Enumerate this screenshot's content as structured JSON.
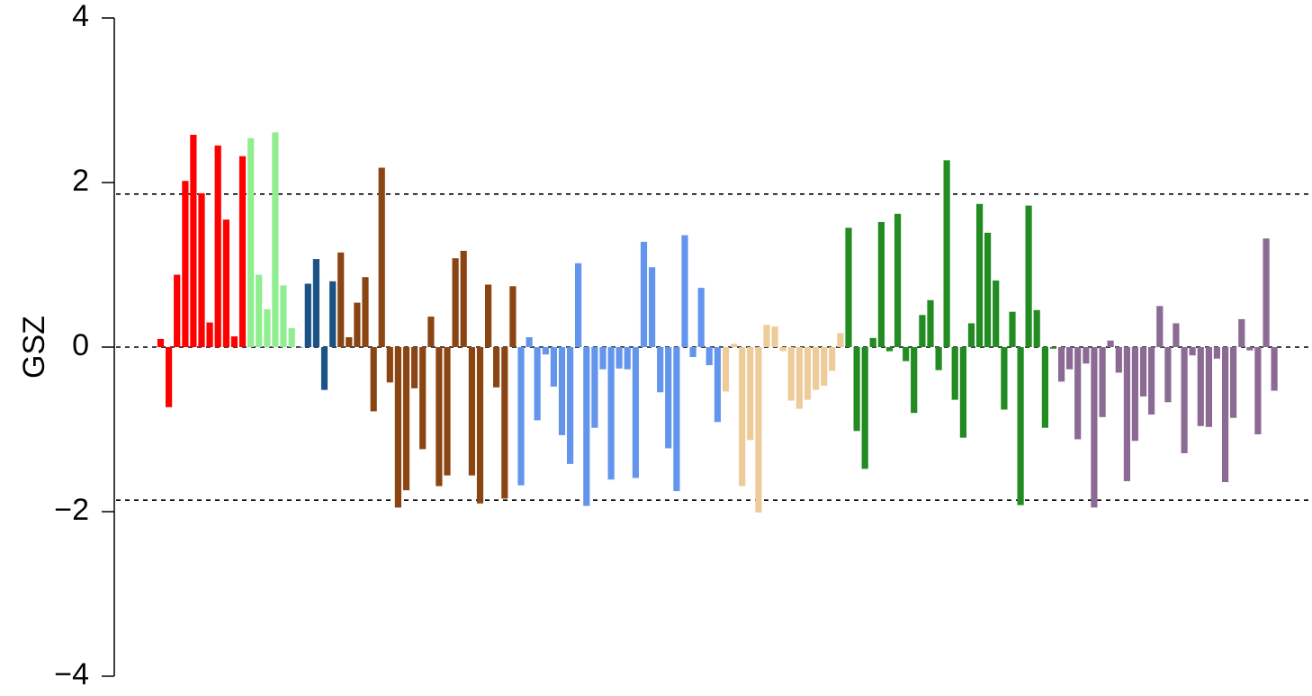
{
  "chart_data": {
    "type": "bar",
    "ylabel": "GSZ",
    "ylim": [
      -4,
      4
    ],
    "yticks": [
      4,
      2,
      0,
      -2,
      -4
    ],
    "ytick_labels": [
      "4",
      "2",
      "0",
      "−2",
      "−4"
    ],
    "reference_lines": [
      1.86,
      0,
      -1.86
    ],
    "grid": false,
    "legend": "none",
    "groups": [
      {
        "color": "#ff0000",
        "values": [
          0.1,
          -0.73,
          0.88,
          2.02,
          2.58,
          1.87,
          0.3,
          2.45,
          1.55,
          0.13,
          2.32
        ]
      },
      {
        "color": "#90ee90",
        "values": [
          2.54,
          0.88,
          0.46,
          2.61,
          0.75,
          0.23
        ]
      },
      {
        "color": "#1a5286",
        "values": [
          0.0,
          0.77,
          1.07,
          -0.52,
          0.8
        ]
      },
      {
        "color": "#8b4513",
        "values": [
          1.15,
          0.12,
          0.54,
          0.85,
          -0.78,
          2.18,
          -0.43,
          -1.95,
          -1.74,
          -0.5,
          -1.24,
          0.37,
          -1.69,
          -1.56,
          1.08,
          1.17,
          -1.56,
          -1.9,
          0.76,
          -0.49,
          -1.84,
          0.74
        ]
      },
      {
        "color": "#6495ed",
        "values": [
          -1.68,
          0.12,
          -0.89,
          -0.09,
          -0.48,
          -1.07,
          -1.42,
          1.02,
          -1.93,
          -0.98,
          -0.27,
          -1.61,
          -0.26,
          -0.27,
          -1.59,
          1.28,
          0.97,
          -0.55,
          -1.23,
          -1.75,
          1.36,
          -0.12,
          0.72,
          -0.22,
          -0.91
        ]
      },
      {
        "color": "#eecc99",
        "values": [
          -0.54,
          0.04,
          -1.69,
          -1.13,
          -2.01,
          0.27,
          0.25,
          -0.05,
          -0.65,
          -0.75,
          -0.64,
          -0.52,
          -0.47,
          -0.29,
          0.17
        ]
      },
      {
        "color": "#228b22",
        "values": [
          1.45,
          -1.02,
          -1.48,
          0.11,
          1.52,
          -0.05,
          1.62,
          -0.17,
          -0.8,
          0.39,
          0.57,
          -0.28,
          2.27,
          -0.64,
          -1.1,
          0.29,
          1.74,
          1.39,
          0.81,
          -0.76,
          0.43,
          -1.92,
          1.72,
          0.45,
          -0.98,
          -0.02
        ]
      },
      {
        "color": "#8b6b93",
        "values": [
          -0.42,
          -0.27,
          -1.12,
          -0.2,
          -1.95,
          -0.85,
          0.08,
          -0.31,
          -1.63,
          -1.14,
          -0.6,
          -0.82,
          0.5,
          -0.67,
          0.29,
          -1.29,
          -0.1,
          -0.96,
          -0.97,
          -0.14,
          -1.64,
          -0.86,
          0.34,
          -0.04,
          -1.06,
          1.32,
          -0.53
        ]
      }
    ]
  }
}
